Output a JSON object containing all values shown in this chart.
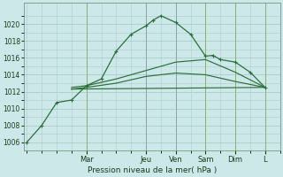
{
  "background_color": "#cce8e8",
  "grid_color": "#aacccc",
  "line_color": "#2d6e3a",
  "xlabel": "Pression niveau de la mer( hPa )",
  "ylim": [
    1005.0,
    1022.5
  ],
  "yticks": [
    1006,
    1008,
    1010,
    1012,
    1014,
    1016,
    1018,
    1020
  ],
  "x_day_labels": [
    "Mar",
    "Jeu",
    "Ven",
    "Sam",
    "Dim",
    "L"
  ],
  "x_day_positions": [
    2,
    4,
    5,
    6,
    7,
    8
  ],
  "xlim": [
    -0.1,
    8.5
  ],
  "series1_x": [
    0,
    0.5,
    1,
    1.5,
    2,
    2.5,
    3,
    3.5,
    4,
    4.25,
    4.5,
    5,
    5.5,
    6,
    6.25,
    6.5,
    7,
    7.5,
    8
  ],
  "series1_y": [
    1006.0,
    1008.0,
    1010.7,
    1011.0,
    1012.7,
    1013.5,
    1016.8,
    1018.8,
    1019.8,
    1020.5,
    1021.0,
    1020.2,
    1018.8,
    1016.2,
    1016.3,
    1015.8,
    1015.5,
    1014.3,
    1012.5
  ],
  "series2_x": [
    1.5,
    2,
    3,
    4,
    5,
    6,
    7,
    8
  ],
  "series2_y": [
    1012.5,
    1012.7,
    1013.5,
    1014.5,
    1015.5,
    1015.8,
    1014.3,
    1012.5
  ],
  "series3_x": [
    1.5,
    2,
    3,
    4,
    5,
    6,
    7,
    8
  ],
  "series3_y": [
    1012.3,
    1012.5,
    1013.0,
    1013.8,
    1014.2,
    1014.0,
    1013.2,
    1012.5
  ],
  "series4_x": [
    1.5,
    8
  ],
  "series4_y": [
    1012.3,
    1012.5
  ]
}
